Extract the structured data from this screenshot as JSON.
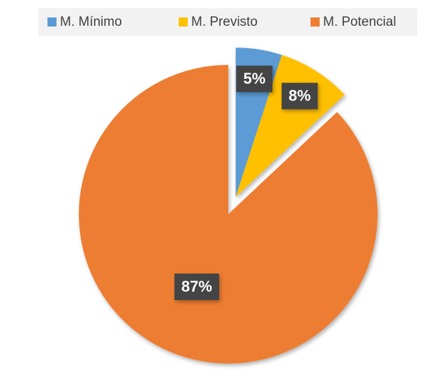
{
  "chart_data": {
    "type": "pie",
    "categories": [
      "M. Mínimo",
      "M. Previsto",
      "M. Potencial"
    ],
    "values": [
      5,
      8,
      87
    ],
    "value_labels": [
      "5%",
      "8%",
      "87%"
    ],
    "colors": [
      "#5b9bd5",
      "#ffc000",
      "#ed7d31"
    ],
    "legend": "top"
  }
}
